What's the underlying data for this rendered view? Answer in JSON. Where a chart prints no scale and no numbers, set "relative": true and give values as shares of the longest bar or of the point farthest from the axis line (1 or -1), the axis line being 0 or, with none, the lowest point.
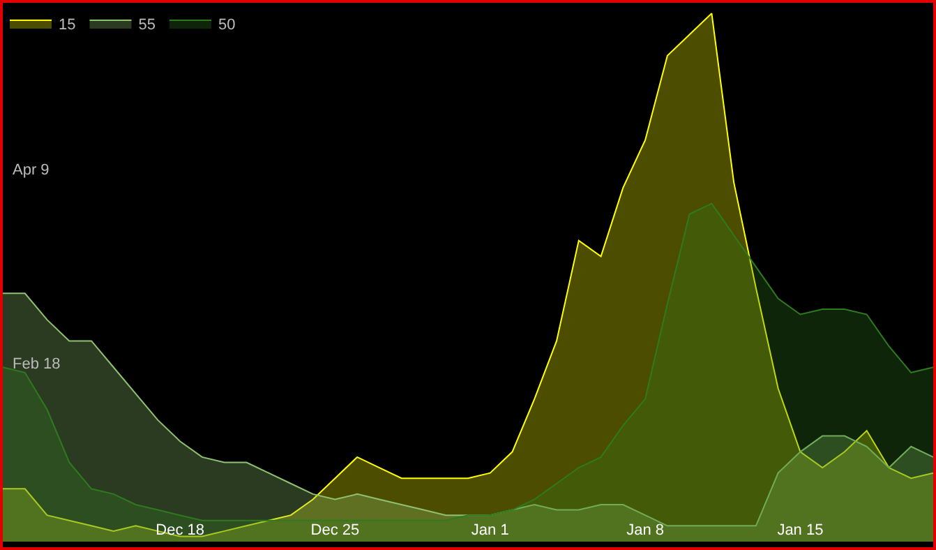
{
  "chart_data": {
    "type": "area",
    "relative": true,
    "categories": [
      null,
      null,
      null,
      null,
      null,
      null,
      null,
      null,
      "Dec 18",
      null,
      null,
      null,
      null,
      null,
      null,
      "Dec 25",
      null,
      null,
      null,
      null,
      null,
      null,
      "Jan 1",
      null,
      null,
      null,
      null,
      null,
      null,
      "Jan 8",
      null,
      null,
      null,
      null,
      null,
      null,
      "Jan 15",
      null,
      null,
      null,
      null,
      null,
      null
    ],
    "annotations": [
      "Apr 9",
      "Feb 18"
    ],
    "legend": "top left",
    "grid": false,
    "series": [
      {
        "name": "15",
        "color": "#ffff00",
        "values": [
          0.1,
          0.1,
          0.05,
          0.04,
          0.03,
          0.02,
          0.03,
          0.02,
          0.01,
          0.01,
          0.02,
          0.03,
          0.04,
          0.05,
          0.08,
          0.12,
          0.16,
          0.14,
          0.12,
          0.12,
          0.12,
          0.12,
          0.13,
          0.17,
          0.27,
          0.38,
          0.57,
          0.54,
          0.67,
          0.76,
          0.92,
          0.96,
          1,
          0.68,
          0.48,
          0.29,
          0.17,
          0.14,
          0.17,
          0.21,
          0.14,
          0.12,
          0.13
        ]
      },
      {
        "name": "55",
        "color": "#8fc270",
        "values": [
          0.47,
          0.47,
          0.42,
          0.38,
          0.38,
          0.33,
          0.28,
          0.23,
          0.19,
          0.16,
          0.15,
          0.15,
          0.13,
          0.11,
          0.09,
          0.08,
          0.09,
          0.08,
          0.07,
          0.06,
          0.05,
          0.05,
          0.05,
          0.06,
          0.07,
          0.06,
          0.06,
          0.07,
          0.07,
          0.05,
          0.03,
          0.03,
          0.03,
          0.03,
          0.03,
          0.13,
          0.17,
          0.2,
          0.2,
          0.18,
          0.14,
          0.18,
          0.16
        ]
      },
      {
        "name": "50",
        "color": "#2f7a1f",
        "values": [
          0.33,
          0.32,
          0.25,
          0.15,
          0.1,
          0.09,
          0.07,
          0.06,
          0.05,
          0.04,
          0.04,
          0.04,
          0.04,
          0.04,
          0.04,
          0.04,
          0.04,
          0.04,
          0.04,
          0.04,
          0.04,
          0.05,
          0.05,
          0.06,
          0.08,
          0.11,
          0.14,
          0.16,
          0.22,
          0.27,
          0.45,
          0.62,
          0.64,
          0.58,
          0.52,
          0.46,
          0.43,
          0.44,
          0.44,
          0.43,
          0.37,
          0.32,
          0.33
        ]
      }
    ]
  }
}
